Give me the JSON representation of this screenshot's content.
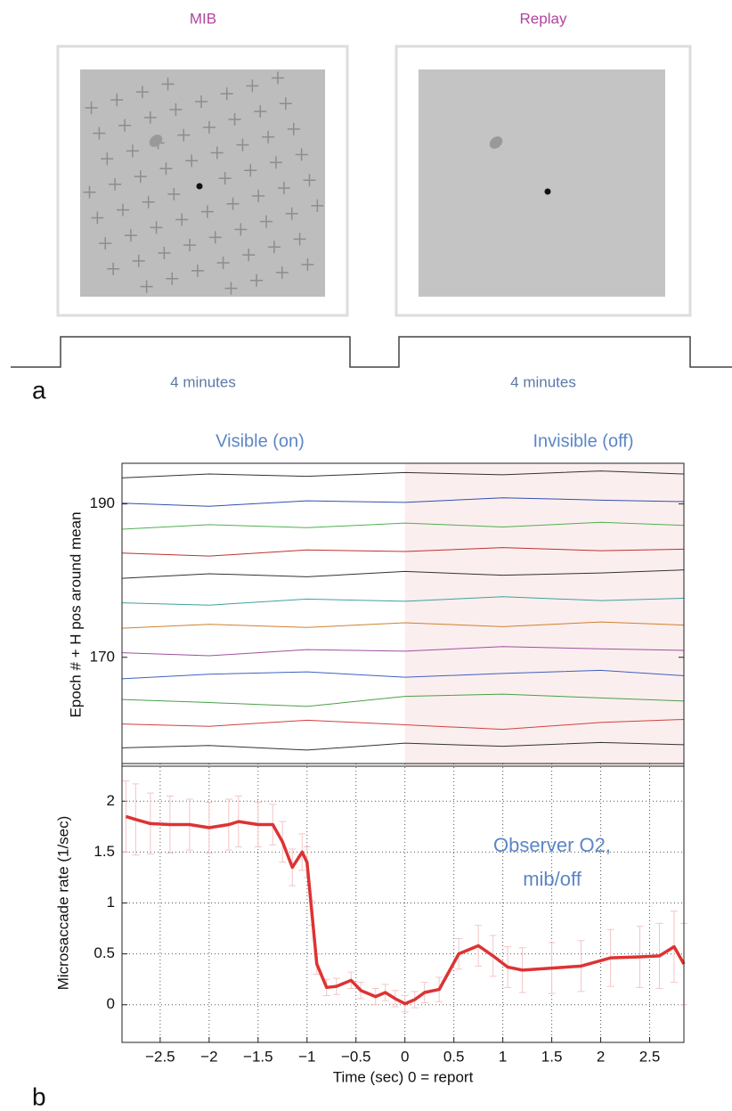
{
  "panel_a": {
    "label": "a",
    "stimuli": [
      {
        "title": "MIB",
        "duration": "4 minutes"
      },
      {
        "title": "Replay",
        "duration": "4 minutes"
      }
    ]
  },
  "panel_b_label": "b",
  "chart_data": [
    {
      "type": "raster",
      "ylabel": "Epoch # + H pos around mean",
      "left_title": "Visible (on)",
      "right_title": "Invisible (off)",
      "xlim": [
        -2.89,
        2.85
      ],
      "ylim": [
        155.8,
        195.3
      ],
      "yticks": [
        170,
        190
      ],
      "shade_from": 0,
      "shade_color": "#fbeeee",
      "x": [
        -2.89,
        -2,
        -1,
        0,
        1,
        2,
        2.85
      ],
      "series": [
        {
          "color": "#333333",
          "values": [
            158.2,
            158.5,
            157.9,
            158.8,
            158.4,
            158.9,
            158.6
          ]
        },
        {
          "color": "#d04040",
          "values": [
            161.3,
            161.0,
            161.8,
            161.2,
            160.6,
            161.5,
            161.9
          ]
        },
        {
          "color": "#4aa04a",
          "values": [
            164.5,
            164.1,
            163.6,
            164.9,
            165.2,
            164.7,
            164.3
          ]
        },
        {
          "color": "#4060c0",
          "values": [
            167.2,
            167.8,
            168.1,
            167.4,
            167.9,
            168.3,
            167.6
          ]
        },
        {
          "color": "#a050a0",
          "values": [
            170.6,
            170.2,
            171.0,
            170.8,
            171.4,
            171.1,
            170.9
          ]
        },
        {
          "color": "#d08030",
          "values": [
            173.8,
            174.3,
            173.9,
            174.5,
            174.0,
            174.6,
            174.2
          ]
        },
        {
          "color": "#40a0a0",
          "values": [
            177.1,
            176.8,
            177.6,
            177.3,
            177.9,
            177.4,
            177.7
          ]
        },
        {
          "color": "#333333",
          "values": [
            180.3,
            180.9,
            180.5,
            181.2,
            180.7,
            181.0,
            181.4
          ]
        },
        {
          "color": "#c03030",
          "values": [
            183.6,
            183.2,
            184.0,
            183.8,
            184.3,
            183.9,
            184.1
          ]
        },
        {
          "color": "#50b050",
          "values": [
            186.7,
            187.3,
            186.9,
            187.5,
            187.0,
            187.6,
            187.2
          ]
        },
        {
          "color": "#3050b0",
          "values": [
            190.1,
            189.7,
            190.4,
            190.2,
            190.8,
            190.5,
            190.3
          ]
        },
        {
          "color": "#333333",
          "values": [
            193.4,
            193.9,
            193.6,
            194.1,
            193.8,
            194.3,
            193.9
          ]
        }
      ]
    },
    {
      "type": "line",
      "ylabel": "Microsaccade rate (1/sec)",
      "xlabel": "Time (sec) 0 = report",
      "annotation": [
        "Observer O2,",
        "mib/off"
      ],
      "annotation_color": "#5b86c5",
      "xlim": [
        -2.89,
        2.85
      ],
      "ylim": [
        -0.37,
        2.37
      ],
      "grid": true,
      "xticks": [
        {
          "value": -2.5,
          "label": "−2.5"
        },
        {
          "value": -2,
          "label": "−2"
        },
        {
          "value": -1.5,
          "label": "−1.5"
        },
        {
          "value": -1,
          "label": "−1"
        },
        {
          "value": -0.5,
          "label": "−0.5"
        },
        0,
        0.5,
        1,
        1.5,
        2,
        2.5
      ],
      "yticks": [
        0,
        0.5,
        1,
        1.5,
        2
      ],
      "x": [
        -2.85,
        -2.75,
        -2.6,
        -2.4,
        -2.2,
        -2.0,
        -1.8,
        -1.7,
        -1.5,
        -1.35,
        -1.25,
        -1.15,
        -1.05,
        -1.0,
        -0.95,
        -0.9,
        -0.8,
        -0.7,
        -0.55,
        -0.45,
        -0.3,
        -0.2,
        -0.1,
        0,
        0.1,
        0.2,
        0.35,
        0.55,
        0.75,
        0.9,
        1.05,
        1.2,
        1.5,
        1.8,
        2.1,
        2.4,
        2.6,
        2.75,
        2.85
      ],
      "series": [
        {
          "color": "#dd3333",
          "error_color": "#f3c6c6",
          "values": [
            1.85,
            1.82,
            1.78,
            1.77,
            1.77,
            1.74,
            1.77,
            1.8,
            1.77,
            1.77,
            1.6,
            1.35,
            1.5,
            1.4,
            0.9,
            0.4,
            0.17,
            0.18,
            0.24,
            0.14,
            0.08,
            0.12,
            0.06,
            0.01,
            0.05,
            0.12,
            0.15,
            0.5,
            0.58,
            0.48,
            0.37,
            0.34,
            0.36,
            0.38,
            0.46,
            0.47,
            0.48,
            0.57,
            0.4
          ],
          "errors": [
            0.35,
            0.35,
            0.3,
            0.28,
            0.25,
            0.25,
            0.25,
            0.25,
            0.22,
            0.2,
            0.2,
            0.18,
            0.18,
            0.15,
            0.12,
            0.1,
            0.08,
            0.08,
            0.08,
            0.08,
            0.08,
            0.08,
            0.08,
            0.08,
            0.08,
            0.1,
            0.12,
            0.15,
            0.2,
            0.2,
            0.2,
            0.22,
            0.25,
            0.25,
            0.28,
            0.3,
            0.32,
            0.35,
            0.4
          ]
        }
      ]
    }
  ]
}
